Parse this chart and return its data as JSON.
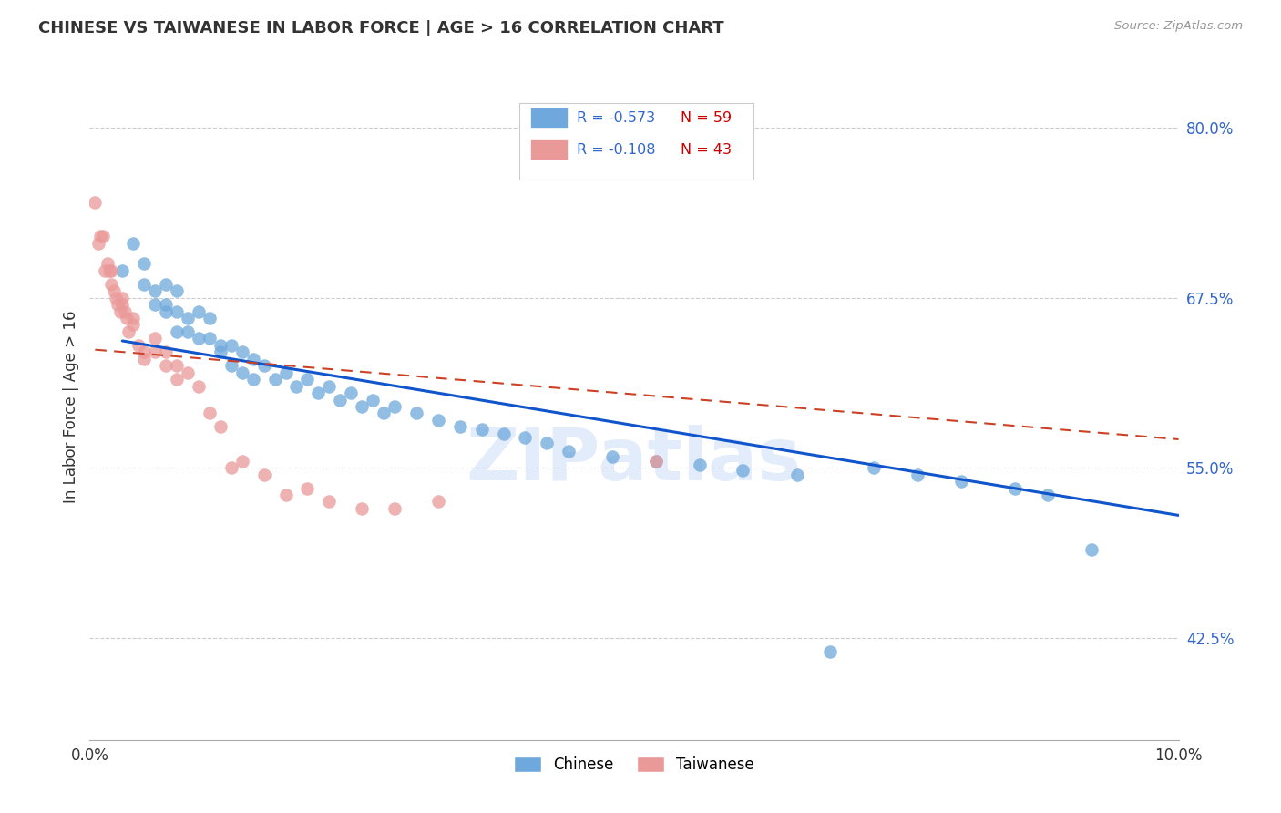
{
  "title": "CHINESE VS TAIWANESE IN LABOR FORCE | AGE > 16 CORRELATION CHART",
  "source": "Source: ZipAtlas.com",
  "ylabel": "In Labor Force | Age > 16",
  "xlim": [
    0.0,
    0.1
  ],
  "ylim": [
    0.35,
    0.84
  ],
  "yticks": [
    0.425,
    0.55,
    0.675,
    0.8
  ],
  "ytick_labels": [
    "42.5%",
    "55.0%",
    "67.5%",
    "80.0%"
  ],
  "xticks": [
    0.0,
    0.02,
    0.04,
    0.06,
    0.08,
    0.1
  ],
  "xtick_labels": [
    "0.0%",
    "",
    "",
    "",
    "",
    "10.0%"
  ],
  "chinese_R": -0.573,
  "chinese_N": 59,
  "taiwanese_R": -0.108,
  "taiwanese_N": 43,
  "chinese_color": "#6fa8dc",
  "taiwanese_color": "#ea9999",
  "chinese_line_color": "#1155cc",
  "taiwanese_line_color": "#cc4125",
  "background_color": "#ffffff",
  "grid_color": "#cccccc",
  "watermark": "ZIPatlas",
  "chinese_x": [
    0.003,
    0.004,
    0.005,
    0.005,
    0.006,
    0.006,
    0.007,
    0.007,
    0.007,
    0.008,
    0.008,
    0.008,
    0.009,
    0.009,
    0.01,
    0.01,
    0.011,
    0.011,
    0.012,
    0.012,
    0.013,
    0.013,
    0.014,
    0.014,
    0.015,
    0.015,
    0.016,
    0.017,
    0.018,
    0.019,
    0.02,
    0.021,
    0.022,
    0.023,
    0.024,
    0.025,
    0.026,
    0.027,
    0.028,
    0.03,
    0.032,
    0.034,
    0.036,
    0.038,
    0.04,
    0.042,
    0.044,
    0.048,
    0.052,
    0.056,
    0.06,
    0.065,
    0.068,
    0.072,
    0.076,
    0.08,
    0.085,
    0.088,
    0.092
  ],
  "chinese_y": [
    0.695,
    0.715,
    0.685,
    0.7,
    0.68,
    0.67,
    0.685,
    0.67,
    0.665,
    0.68,
    0.665,
    0.65,
    0.66,
    0.65,
    0.665,
    0.645,
    0.66,
    0.645,
    0.64,
    0.635,
    0.64,
    0.625,
    0.635,
    0.62,
    0.63,
    0.615,
    0.625,
    0.615,
    0.62,
    0.61,
    0.615,
    0.605,
    0.61,
    0.6,
    0.605,
    0.595,
    0.6,
    0.59,
    0.595,
    0.59,
    0.585,
    0.58,
    0.578,
    0.575,
    0.572,
    0.568,
    0.562,
    0.558,
    0.555,
    0.552,
    0.548,
    0.545,
    0.415,
    0.55,
    0.545,
    0.54,
    0.535,
    0.53,
    0.49
  ],
  "taiwanese_x": [
    0.0005,
    0.0008,
    0.001,
    0.0012,
    0.0014,
    0.0016,
    0.0018,
    0.002,
    0.002,
    0.0022,
    0.0024,
    0.0026,
    0.0028,
    0.003,
    0.003,
    0.0032,
    0.0034,
    0.0036,
    0.004,
    0.004,
    0.0045,
    0.005,
    0.005,
    0.006,
    0.006,
    0.007,
    0.007,
    0.008,
    0.008,
    0.009,
    0.01,
    0.011,
    0.012,
    0.013,
    0.014,
    0.016,
    0.018,
    0.02,
    0.022,
    0.025,
    0.028,
    0.032,
    0.052
  ],
  "taiwanese_y": [
    0.745,
    0.715,
    0.72,
    0.72,
    0.695,
    0.7,
    0.695,
    0.695,
    0.685,
    0.68,
    0.675,
    0.67,
    0.665,
    0.675,
    0.67,
    0.665,
    0.66,
    0.65,
    0.655,
    0.66,
    0.64,
    0.635,
    0.63,
    0.645,
    0.635,
    0.635,
    0.625,
    0.625,
    0.615,
    0.62,
    0.61,
    0.59,
    0.58,
    0.55,
    0.555,
    0.545,
    0.53,
    0.535,
    0.525,
    0.52,
    0.52,
    0.525,
    0.555
  ],
  "chinese_line_start_x": 0.003,
  "chinese_line_end_x": 0.1,
  "taiwanese_line_start_x": 0.0005,
  "taiwanese_line_end_x": 0.1
}
